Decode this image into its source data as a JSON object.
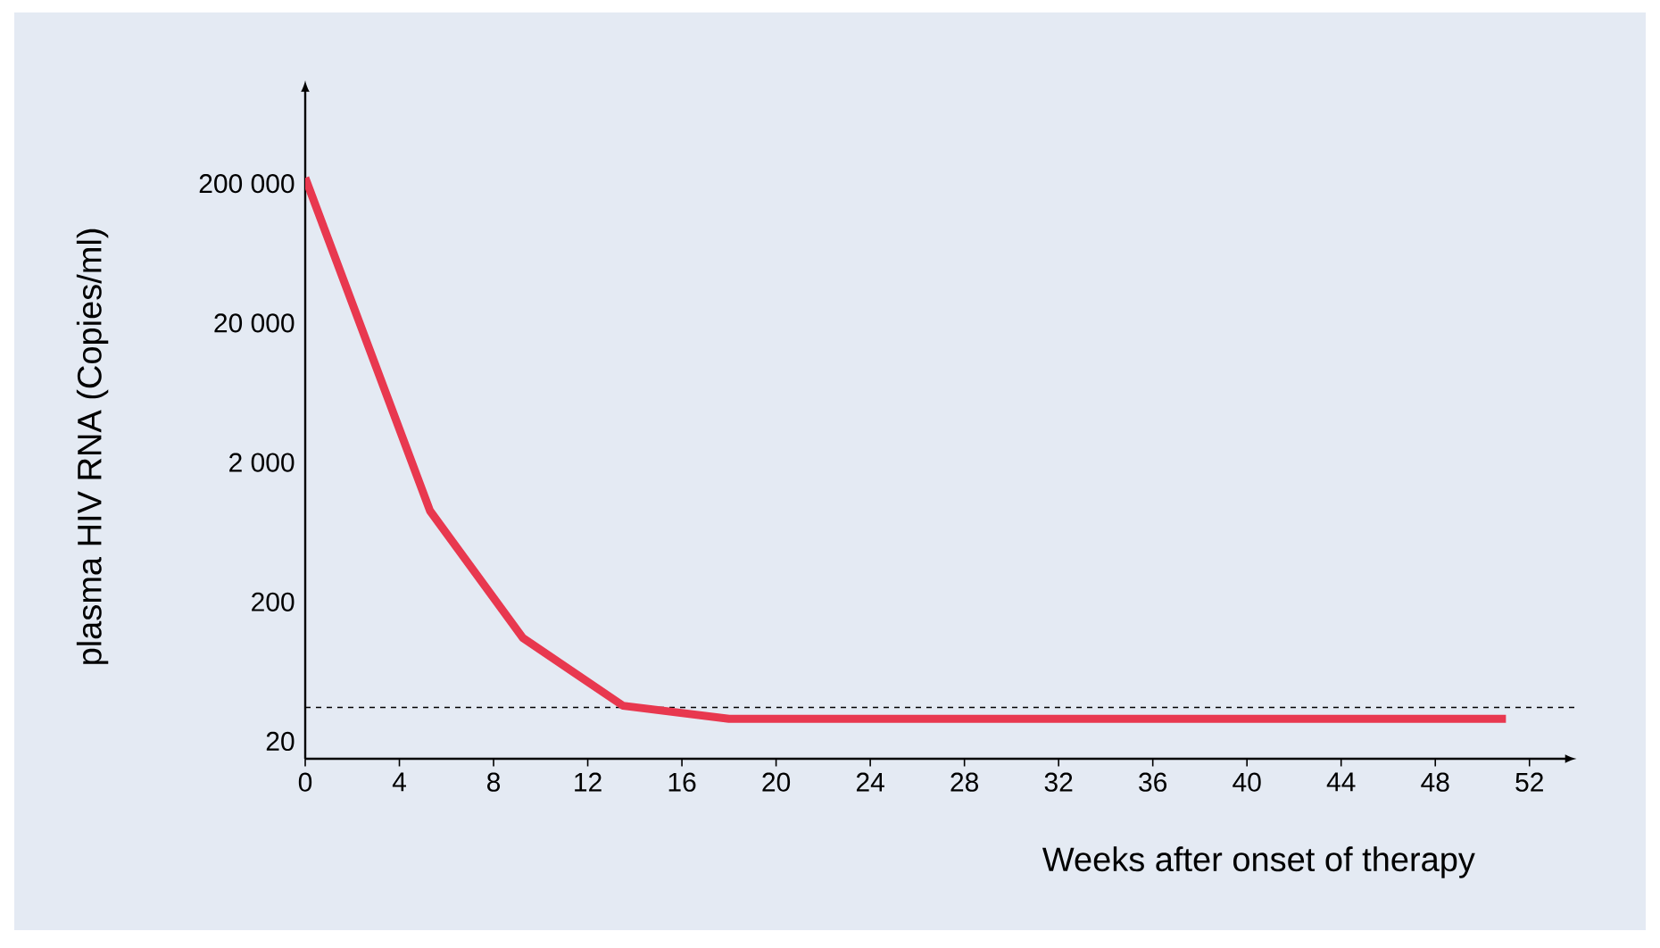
{
  "chart_data": {
    "type": "line",
    "xlabel": "Weeks after onset of therapy",
    "ylabel": "plasma HIV RNA (Copies/ml)",
    "x": [
      0,
      5.3,
      9.25,
      13.5,
      18,
      51
    ],
    "series": [
      {
        "color": "#e8384f",
        "values": [
          220000,
          900,
          110,
          36,
          29,
          29
        ]
      }
    ],
    "log": "y",
    "xlim": [
      0,
      54
    ],
    "ylim": [
      15,
      1100000
    ],
    "xticks": [
      0,
      4,
      8,
      12,
      16,
      20,
      24,
      28,
      32,
      36,
      40,
      44,
      48,
      52
    ],
    "yticks": [
      {
        "value": 20,
        "label": "20"
      },
      {
        "value": 200,
        "label": "200"
      },
      {
        "value": 2000,
        "label": "2 000"
      },
      {
        "value": 20000,
        "label": "20 000"
      },
      {
        "value": 200000,
        "label": "200 000"
      }
    ],
    "ref_lines": [
      {
        "axis": "y",
        "value": 35,
        "color": "#000000",
        "line_style": "dashed"
      }
    ],
    "grid": false,
    "marker": "none",
    "line_style": "solid"
  }
}
